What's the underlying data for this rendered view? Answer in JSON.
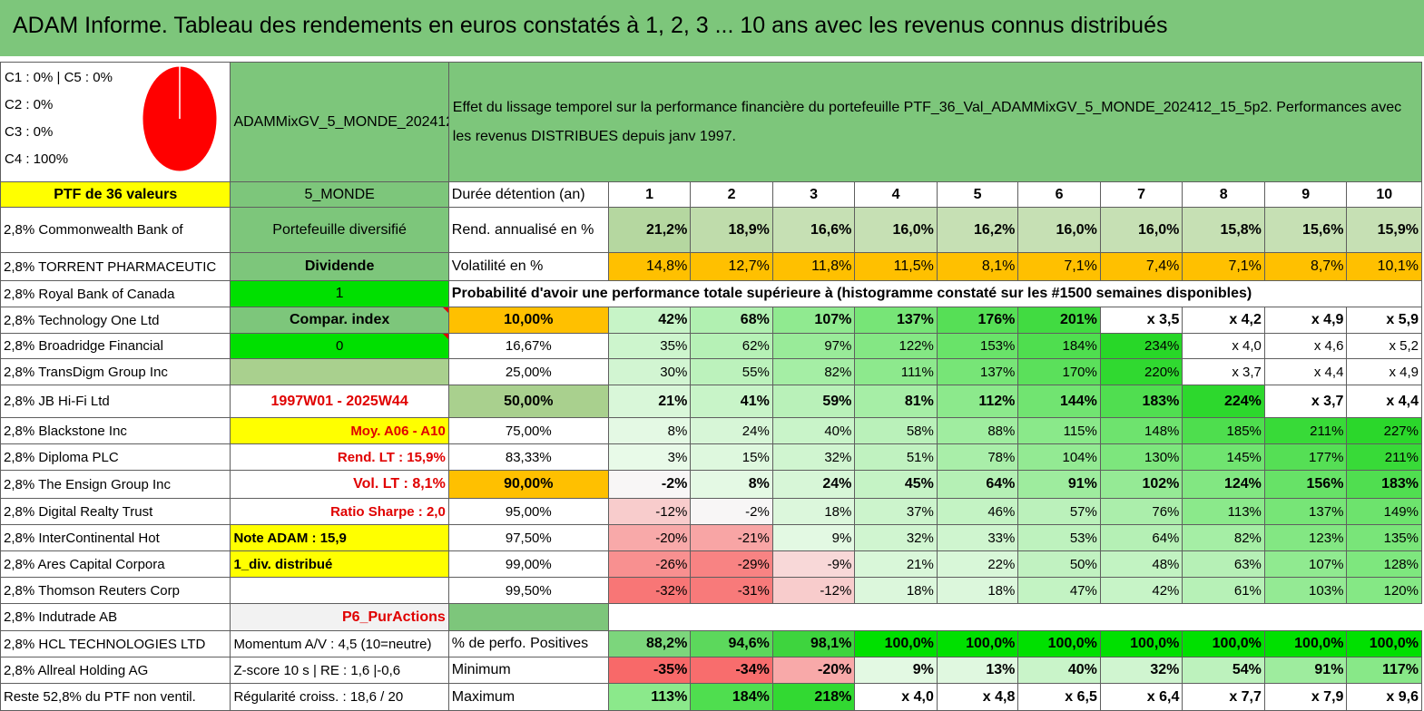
{
  "title": "ADAM Informe. Tableau des rendements en euros constatés à 1, 2, 3 ... 10 ans avec les revenus connus distribués",
  "legend": {
    "line1": "C1 : 0% | C5 : 0%",
    "line2": "C2 : 0%",
    "line3": "C3 : 0%",
    "line4": "C4 : 100%",
    "pie_colors": {
      "c4": "#ff0000",
      "border": "#ffffff"
    }
  },
  "portfolio": {
    "code": "ADAMMixGV_5_MONDE_202412_15_5p2",
    "effect_text": "Effet du lissage temporel sur la performance financière du portefeuille PTF_36_Val_ADAMMixGV_5_MONDE_202412_15_5p2. Performances avec les revenus DISTRIBUES depuis janv 1997.",
    "ptf_label": "PTF de 36 valeurs",
    "zone": "5_MONDE",
    "diversified": "Portefeuille diversifié",
    "dividend": "Dividende",
    "dividend_value": "1",
    "compar_index": "Compar. index",
    "compar_value": "0",
    "period": "1997W01 - 2025W44",
    "moy": "Moy. A06 - A10",
    "rend_lt": "Rend. LT : 15,9%",
    "vol_lt": "Vol. LT : 8,1%",
    "sharpe": "Ratio Sharpe : 2,0",
    "note": "Note ADAM : 15,9",
    "div_mode": "1_div. distribué",
    "tag": "P6_PurActions",
    "momentum": "Momentum A/V : 4,5 (10=neutre)",
    "zscore": "Z-score 10 s | RE : 1,6 |-0,6",
    "regularite": "Régularité croiss. : 18,6 / 20"
  },
  "holdings": [
    "2,8% Commonwealth Bank of",
    "2,8% TORRENT PHARMACEUTIC",
    "2,8% Royal Bank of Canada",
    "2,8% Technology One Ltd",
    "2,8% Broadridge Financial",
    "2,8% TransDigm Group Inc",
    "2,8% JB Hi-Fi Ltd",
    "2,8% Blackstone Inc",
    "2,8% Diploma PLC",
    "2,8% The Ensign Group Inc",
    "2,8% Digital Realty Trust",
    "2,8% InterContinental Hot",
    "2,8% Ares Capital Corpora",
    "2,8% Thomson Reuters Corp",
    "2,8% Indutrade AB",
    "2,8% HCL TECHNOLOGIES LTD",
    "2,8% Allreal Holding AG",
    "Reste 52,8% du PTF non ventil."
  ],
  "table": {
    "duration_label": "Durée détention (an)",
    "years": [
      "1",
      "2",
      "3",
      "4",
      "5",
      "6",
      "7",
      "8",
      "9",
      "10"
    ],
    "rend_label": "Rend. annualisé en %",
    "rend": [
      "21,2%",
      "18,9%",
      "16,6%",
      "16,0%",
      "16,2%",
      "16,0%",
      "16,0%",
      "15,8%",
      "15,6%",
      "15,9%"
    ],
    "vol_label": "Volatilité en %",
    "vol": [
      "14,8%",
      "12,7%",
      "11,8%",
      "11,5%",
      "8,1%",
      "7,1%",
      "7,4%",
      "7,1%",
      "8,7%",
      "10,1%"
    ],
    "prob_header": "Probabilité d'avoir une performance totale supérieure à (histogramme constaté sur les #1500 semaines disponibles)",
    "prob_rows": [
      {
        "p": "10,00%",
        "v": [
          "42%",
          "68%",
          "107%",
          "137%",
          "176%",
          "201%",
          "x 3,5",
          "x 4,2",
          "x 4,9",
          "x 5,9"
        ]
      },
      {
        "p": "16,67%",
        "v": [
          "35%",
          "62%",
          "97%",
          "122%",
          "153%",
          "184%",
          "234%",
          "x 4,0",
          "x 4,6",
          "x 5,2"
        ]
      },
      {
        "p": "25,00%",
        "v": [
          "30%",
          "55%",
          "82%",
          "111%",
          "137%",
          "170%",
          "220%",
          "x 3,7",
          "x 4,4",
          "x 4,9"
        ]
      },
      {
        "p": "50,00%",
        "v": [
          "21%",
          "41%",
          "59%",
          "81%",
          "112%",
          "144%",
          "183%",
          "224%",
          "x 3,7",
          "x 4,4"
        ]
      },
      {
        "p": "75,00%",
        "v": [
          "8%",
          "24%",
          "40%",
          "58%",
          "88%",
          "115%",
          "148%",
          "185%",
          "211%",
          "227%"
        ]
      },
      {
        "p": "83,33%",
        "v": [
          "3%",
          "15%",
          "32%",
          "51%",
          "78%",
          "104%",
          "130%",
          "145%",
          "177%",
          "211%"
        ]
      },
      {
        "p": "90,00%",
        "v": [
          "-2%",
          "8%",
          "24%",
          "45%",
          "64%",
          "91%",
          "102%",
          "124%",
          "156%",
          "183%"
        ]
      },
      {
        "p": "95,00%",
        "v": [
          "-12%",
          "-2%",
          "18%",
          "37%",
          "46%",
          "57%",
          "76%",
          "113%",
          "137%",
          "149%"
        ]
      },
      {
        "p": "97,50%",
        "v": [
          "-20%",
          "-21%",
          "9%",
          "32%",
          "33%",
          "53%",
          "64%",
          "82%",
          "123%",
          "135%"
        ]
      },
      {
        "p": "99,00%",
        "v": [
          "-26%",
          "-29%",
          "-9%",
          "21%",
          "22%",
          "50%",
          "48%",
          "63%",
          "107%",
          "128%"
        ]
      },
      {
        "p": "99,50%",
        "v": [
          "-32%",
          "-31%",
          "-12%",
          "18%",
          "18%",
          "47%",
          "42%",
          "61%",
          "103%",
          "120%"
        ]
      }
    ],
    "pos_label": "% de perfo. Positives",
    "pos": [
      "88,2%",
      "94,6%",
      "98,1%",
      "100,0%",
      "100,0%",
      "100,0%",
      "100,0%",
      "100,0%",
      "100,0%",
      "100,0%"
    ],
    "min_label": "Minimum",
    "min": [
      "-35%",
      "-34%",
      "-20%",
      "9%",
      "13%",
      "40%",
      "32%",
      "54%",
      "91%",
      "117%"
    ],
    "max_label": "Maximum",
    "max": [
      "113%",
      "184%",
      "218%",
      "x 4,0",
      "x 4,8",
      "x 6,5",
      "x 6,4",
      "x 7,7",
      "x 7,9",
      "x 9,6"
    ]
  }
}
